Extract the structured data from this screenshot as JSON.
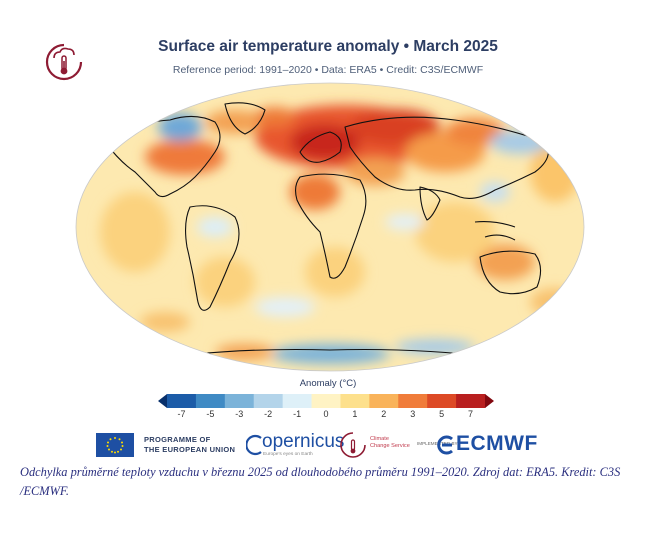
{
  "header": {
    "title": "Surface air temperature anomaly • March 2025",
    "subtitle": "Reference period: 1991–2020 • Data: ERA5 • Credit: C3S/ECMWF",
    "logo_icon": "thermometer-cloud-icon",
    "accent_color": "#8e1b33"
  },
  "map": {
    "projection": "robinson",
    "variable": "surface air temperature anomaly",
    "units": "°C"
  },
  "legend": {
    "title": "Anomaly (°C)",
    "ticks": [
      "-7",
      "-5",
      "-3",
      "-2",
      "-1",
      "0",
      "1",
      "2",
      "3",
      "5",
      "7"
    ],
    "colors": [
      "#08306b",
      "#1c5ca8",
      "#3f8ac4",
      "#7bb3d9",
      "#b3d4ea",
      "#def0f8",
      "#fff3c4",
      "#fde08c",
      "#f9b35a",
      "#f07c3a",
      "#dd4a26",
      "#b91f1f",
      "#82080f"
    ]
  },
  "partners": {
    "eu_line1": "PROGRAMME OF",
    "eu_line2": "THE EUROPEAN UNION",
    "copernicus": "opernicus",
    "copernicus_tagline": "Europe's eyes on Earth",
    "c3s_line1": "Climate",
    "c3s_line2": "Change Service",
    "implemented_by": "IMPLEMENTED BY",
    "ecmwf": "ECMWF"
  },
  "caption": "Odchylka průměrné teploty vzduchu v březnu 2025 od dlouhodobého průměru 1991–2020. Zdroj dat: ERA5. Kredit: C3S /ECMWF."
}
